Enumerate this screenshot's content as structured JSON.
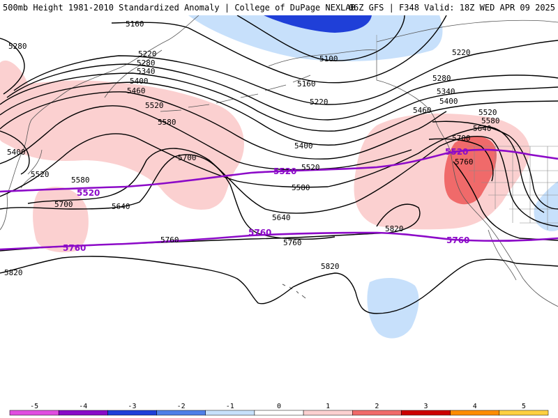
{
  "header": {
    "title_left": "500mb Height 1981-2010 Standardized Anomaly | College of DuPage NEXLAB",
    "title_right": "06Z GFS | F348 Valid: 18Z WED APR 09 2025"
  },
  "colors": {
    "contour": "#000000",
    "reference_contour": "#8c0ac8",
    "coastline": "#555555",
    "anomaly": {
      "-5": "#e04de0",
      "-4": "#8a0ac8",
      "-3": "#1f3fd8",
      "-2": "#4f7fe8",
      "-1": "#c7e0fb",
      "0": "#ffffff",
      "1": "#fbd0d0",
      "2": "#f06a6a",
      "3": "#cc0000",
      "4": "#ff8c00",
      "5": "#ffd040"
    }
  },
  "contour_labels": [
    {
      "text": "5160"
    },
    {
      "text": "5280"
    },
    {
      "text": "5220"
    },
    {
      "text": "5280"
    },
    {
      "text": "5340"
    },
    {
      "text": "5400"
    },
    {
      "text": "5460"
    },
    {
      "text": "5520"
    },
    {
      "text": "5580"
    },
    {
      "text": "5700"
    },
    {
      "text": "5400"
    },
    {
      "text": "5520"
    },
    {
      "text": "5580"
    },
    {
      "text": "5640"
    },
    {
      "text": "5700"
    },
    {
      "text": "5760"
    },
    {
      "text": "5820"
    },
    {
      "text": "5100"
    },
    {
      "text": "5160"
    },
    {
      "text": "5220"
    },
    {
      "text": "5400"
    },
    {
      "text": "5520"
    },
    {
      "text": "5580"
    },
    {
      "text": "5640"
    },
    {
      "text": "5760"
    },
    {
      "text": "5820"
    },
    {
      "text": "5220"
    },
    {
      "text": "5280"
    },
    {
      "text": "5340"
    },
    {
      "text": "5400"
    },
    {
      "text": "5460"
    },
    {
      "text": "5520"
    },
    {
      "text": "5580"
    },
    {
      "text": "5640"
    },
    {
      "text": "5700"
    },
    {
      "text": "5760"
    },
    {
      "text": "5820"
    }
  ],
  "reference_labels": [
    {
      "text": "5520"
    },
    {
      "text": "5520"
    },
    {
      "text": "5520"
    },
    {
      "text": "5760"
    },
    {
      "text": "5760"
    },
    {
      "text": "5760"
    }
  ],
  "colorbar": {
    "ticks": [
      "-5",
      "-4",
      "-3",
      "-2",
      "-1",
      "0",
      "1",
      "2",
      "3",
      "4",
      "5"
    ],
    "bins": [
      -5.5,
      -4.5,
      -3.5,
      -2.5,
      -1.5,
      -0.5,
      0.5,
      1.5,
      2.5,
      3.5,
      4.5
    ]
  }
}
